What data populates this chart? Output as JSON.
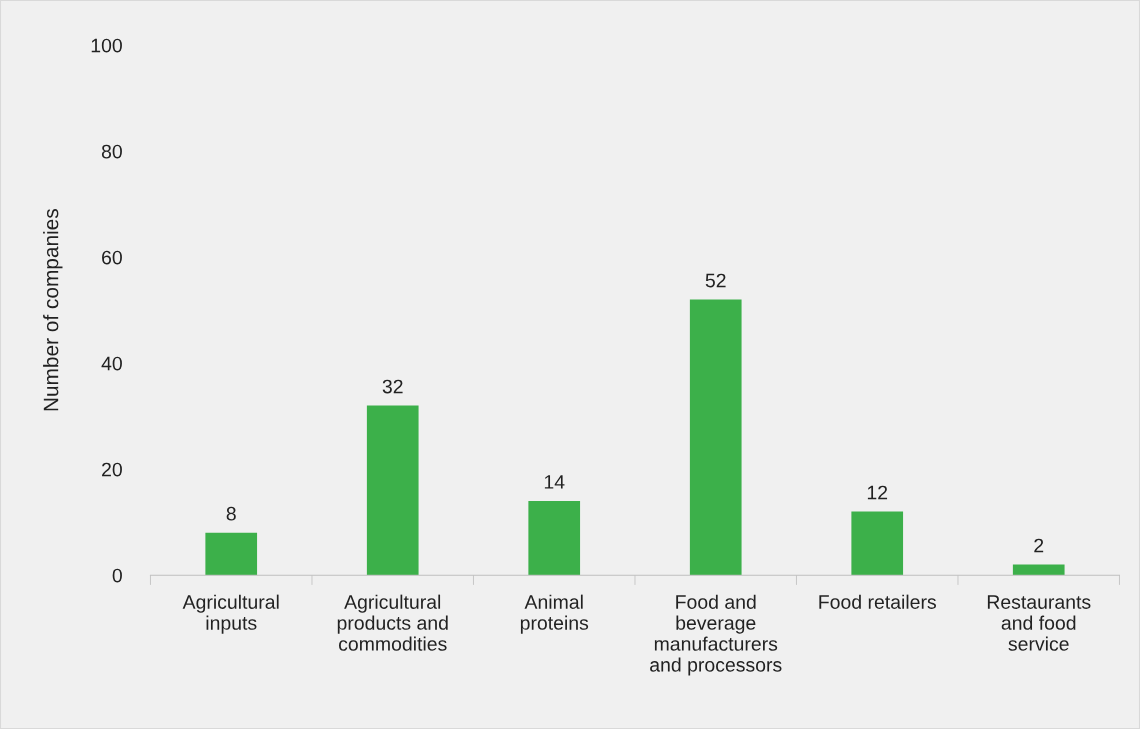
{
  "chart_data": {
    "type": "bar",
    "ylabel": "Number of companies",
    "categories": [
      "Agricultural\ninputs",
      "Agricultural\nproducts and\ncommodities",
      "Animal\nproteins",
      "Food and\nbeverage\nmanufacturers\nand processors",
      "Food retailers",
      "Restaurants\nand food\nservice"
    ],
    "values": [
      8,
      32,
      14,
      52,
      12,
      2
    ],
    "color": "#3cb04a",
    "ylim": [
      0,
      100
    ],
    "yticks": [
      0,
      20,
      40,
      60,
      80,
      100
    ],
    "grid": false,
    "data_labels": true
  }
}
